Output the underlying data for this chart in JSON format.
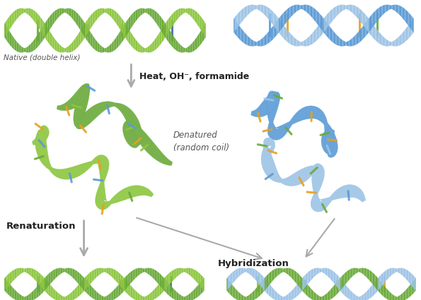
{
  "background_color": "#ffffff",
  "labels": {
    "native": "Native (double helix)",
    "heat": "Heat, OH⁻, formamide",
    "denatured": "Denatured\n(random coil)",
    "renaturation": "Renaturation",
    "hybridization": "Hybridization"
  },
  "colors": {
    "green_dark": "#4a7c2f",
    "green_medium": "#6aaa3a",
    "green_light": "#8cc63f",
    "blue_dark": "#3a6fa8",
    "blue_medium": "#5b9bd5",
    "blue_light": "#9dc3e6",
    "orange": "#e8a020",
    "green_rung": "#6aaa3a",
    "blue_rung": "#5b9bd5",
    "arrow_gray": "#aaaaaa",
    "text_dark": "#555555",
    "text_bold": "#222222"
  },
  "figsize": [
    5.95,
    4.25
  ],
  "dpi": 100
}
